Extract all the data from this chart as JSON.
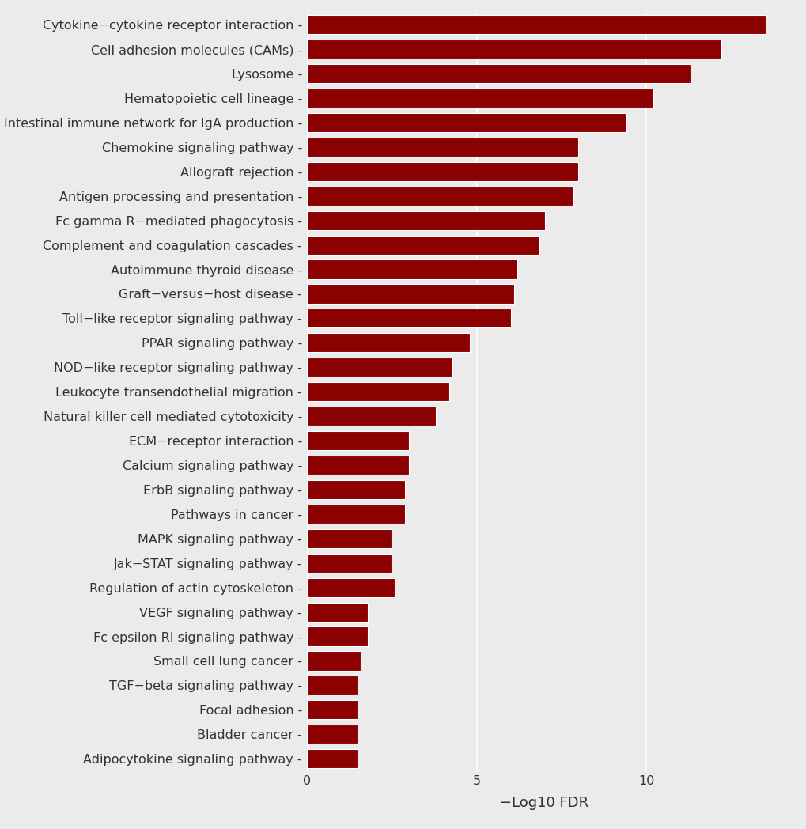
{
  "categories": [
    "Cytokine−cytokine receptor interaction",
    "Cell adhesion molecules (CAMs)",
    "Lysosome",
    "Hematopoietic cell lineage",
    "Intestinal immune network for IgA production",
    "Chemokine signaling pathway",
    "Allograft rejection",
    "Antigen processing and presentation",
    "Fc gamma R−mediated phagocytosis",
    "Complement and coagulation cascades",
    "Autoimmune thyroid disease",
    "Graft−versus−host disease",
    "Toll−like receptor signaling pathway",
    "PPAR signaling pathway",
    "NOD−like receptor signaling pathway",
    "Leukocyte transendothelial migration",
    "Natural killer cell mediated cytotoxicity",
    "ECM−receptor interaction",
    "Calcium signaling pathway",
    "ErbB signaling pathway",
    "Pathways in cancer",
    "MAPK signaling pathway",
    "Jak−STAT signaling pathway",
    "Regulation of actin cytoskeleton",
    "VEGF signaling pathway",
    "Fc epsilon RI signaling pathway",
    "Small cell lung cancer",
    "TGF−beta signaling pathway",
    "Focal adhesion",
    "Bladder cancer",
    "Adipocytokine signaling pathway"
  ],
  "values": [
    13.5,
    12.2,
    11.3,
    10.2,
    9.4,
    8.0,
    8.0,
    7.85,
    7.0,
    6.85,
    6.2,
    6.1,
    6.0,
    4.8,
    4.3,
    4.2,
    3.8,
    3.0,
    3.0,
    2.9,
    2.9,
    2.5,
    2.5,
    2.6,
    1.8,
    1.8,
    1.6,
    1.5,
    1.5,
    1.5,
    1.5
  ],
  "bar_color": "#8B0000",
  "background_color": "#EBEBEB",
  "grid_color": "#FFFFFF",
  "xlabel": "−Log10 FDR",
  "xlim": [
    0,
    14
  ],
  "xticks": [
    0,
    5,
    10
  ],
  "bar_height": 0.78,
  "label_fontsize": 11.5,
  "tick_fontsize": 11.5,
  "xlabel_fontsize": 13
}
